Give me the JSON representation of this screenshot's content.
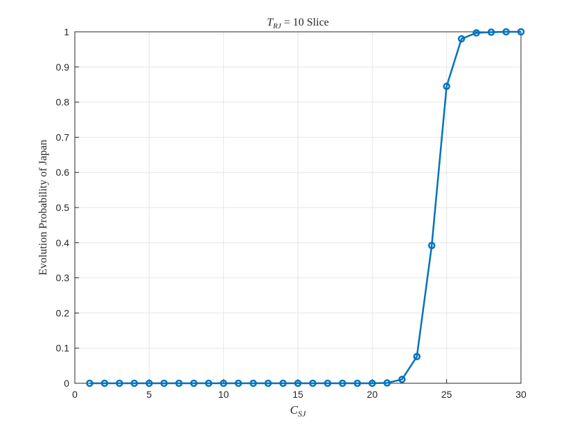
{
  "chart_data": {
    "type": "line",
    "title": {
      "symbol": "T",
      "subscript": "RJ",
      "text": "= 10 Slice"
    },
    "x_label": {
      "symbol": "C",
      "subscript": "SJ"
    },
    "y_label": "Evolution Probability of Japan",
    "x": [
      1,
      2,
      3,
      4,
      5,
      6,
      7,
      8,
      9,
      10,
      11,
      12,
      13,
      14,
      15,
      16,
      17,
      18,
      19,
      20,
      21,
      22,
      23,
      24,
      25,
      26,
      27,
      28,
      29,
      30
    ],
    "series": [
      {
        "color": "#0072bd",
        "values": [
          0,
          0,
          0,
          0,
          0,
          0,
          0,
          0,
          0,
          0,
          0,
          0,
          0,
          0,
          0,
          0,
          0,
          0,
          0,
          0,
          0.001,
          0.011,
          0.076,
          0.392,
          0.845,
          0.98,
          0.997,
          0.999,
          1,
          1
        ]
      }
    ],
    "xlim": [
      0,
      30
    ],
    "xticks": [
      0,
      5,
      10,
      15,
      20,
      25,
      30
    ],
    "ylim": [
      0,
      1
    ],
    "yticks": [
      0,
      0.1,
      0.2,
      0.3,
      0.4,
      0.5,
      0.6,
      0.7,
      0.8,
      0.9,
      1
    ],
    "grid": true,
    "markers": true
  }
}
